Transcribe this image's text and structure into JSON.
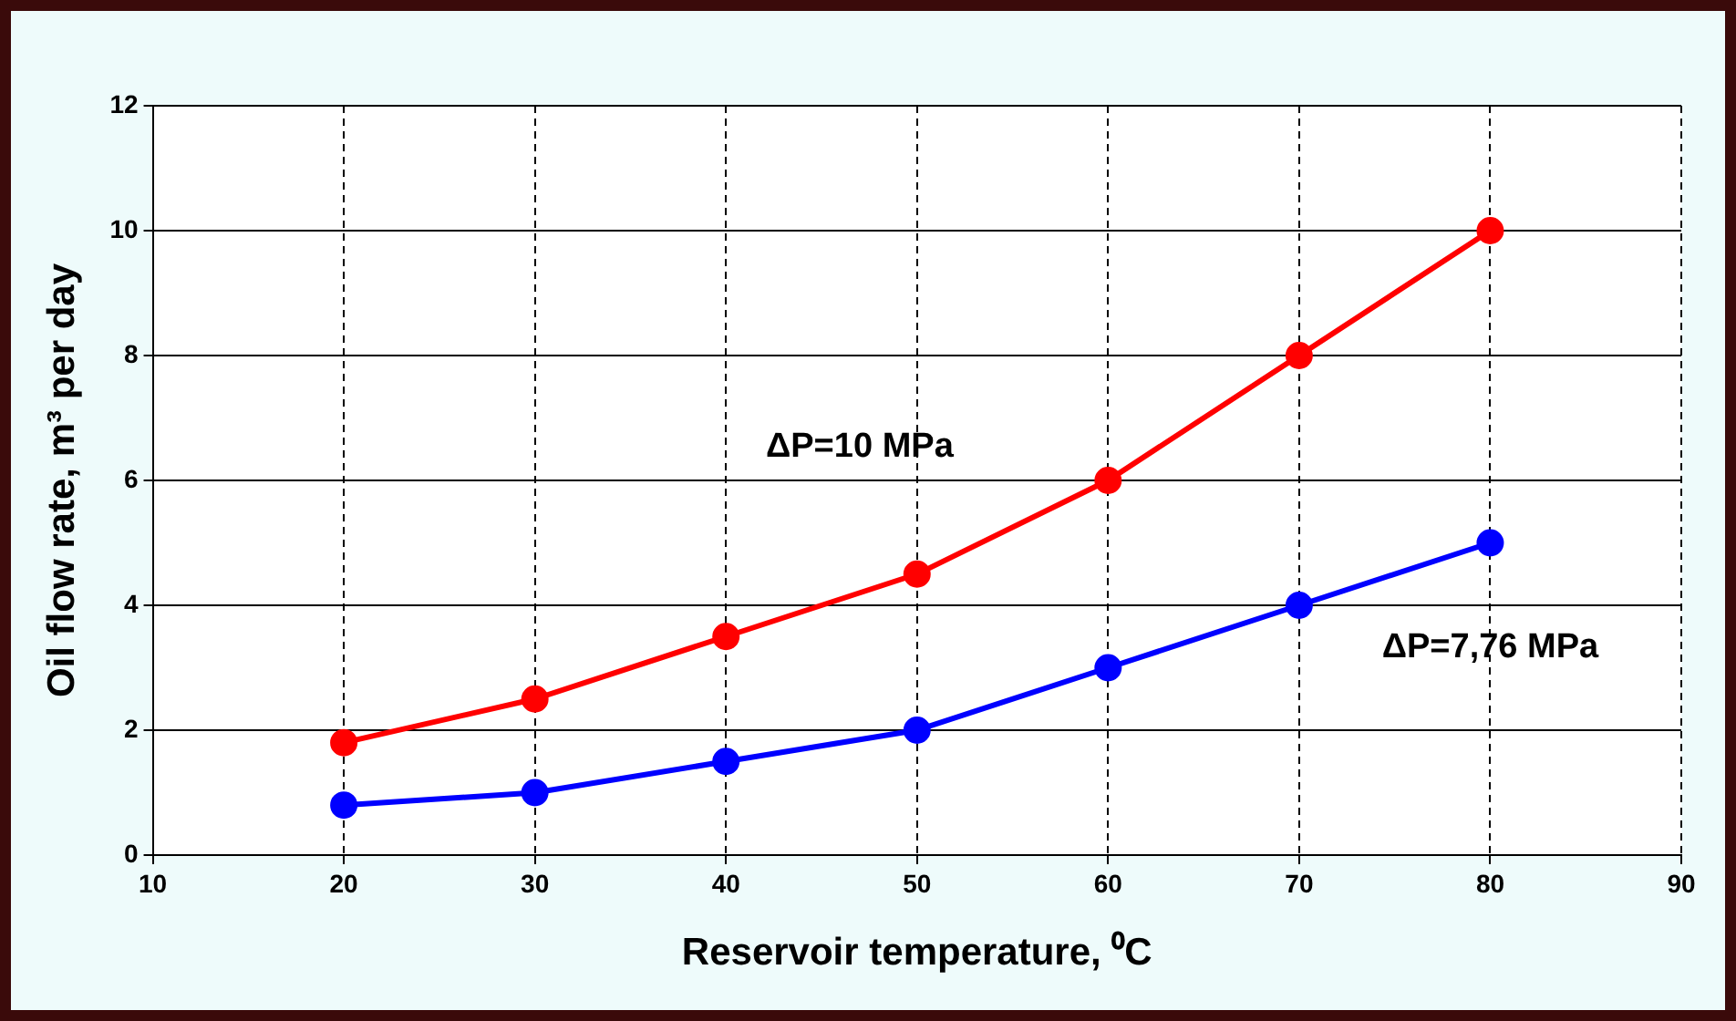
{
  "chart_data": {
    "type": "line",
    "xlabel": "Reservoir temperature, ⁰C",
    "ylabel": "Oil flow rate, m³ per day",
    "x": [
      20,
      30,
      40,
      50,
      60,
      70,
      80
    ],
    "series": [
      {
        "name": "ΔP=10 MPa",
        "color": "#ff0000",
        "values": [
          1.8,
          2.5,
          3.5,
          4.5,
          6,
          8,
          10
        ]
      },
      {
        "name": "ΔP=7,76 MPa",
        "color": "#0000ff",
        "values": [
          0.8,
          1.0,
          1.5,
          2.0,
          3.0,
          4.0,
          5.0
        ]
      }
    ],
    "xlim": [
      10,
      90
    ],
    "xticks": [
      10,
      20,
      30,
      40,
      50,
      60,
      70,
      80,
      90
    ],
    "ylim": [
      0,
      12
    ],
    "yticks": [
      0,
      2,
      4,
      6,
      8,
      10,
      12
    ],
    "grid": true,
    "legend": false,
    "marker": "circle",
    "line_style": "solid"
  }
}
